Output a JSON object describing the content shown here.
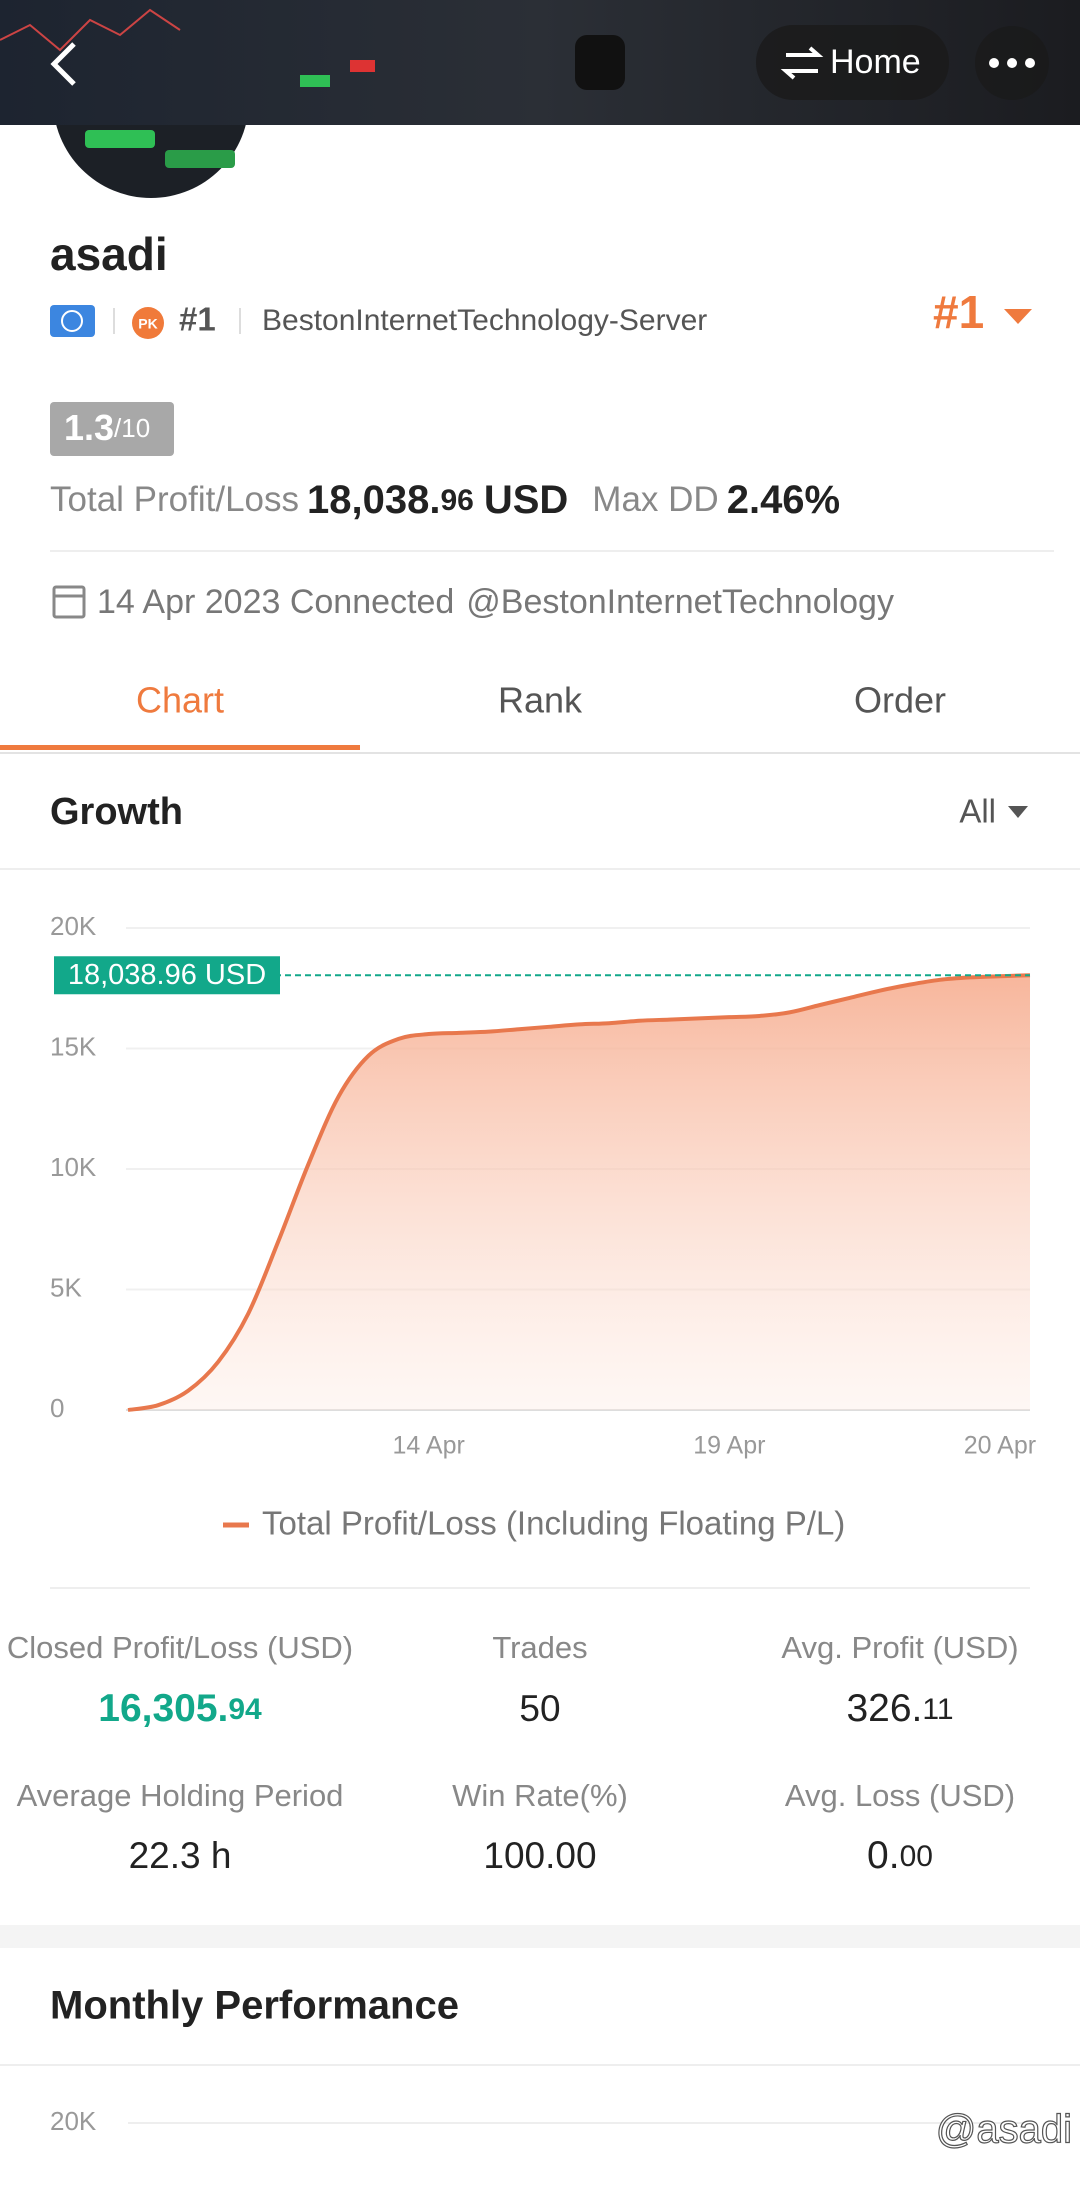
{
  "header": {
    "home_button": "Home"
  },
  "profile": {
    "name": "asadi",
    "rank_badge": "#1",
    "server": "BestonInternetTechnology-Server",
    "rank_right": "#1",
    "score": "1.3",
    "score_max": "/10",
    "total_label": "Total Profit/Loss",
    "total_integer": "18,038.",
    "total_decimal": "96",
    "total_unit": "USD",
    "maxdd_label": "Max DD",
    "maxdd_value": "2.46%",
    "connected": "14 Apr 2023 Connected",
    "connected_by": "@BestonInternetTechnology"
  },
  "tabs": [
    "Chart",
    "Rank",
    "Order"
  ],
  "growth": {
    "title": "Growth",
    "range": "All"
  },
  "chart_data": {
    "type": "area",
    "categories": [
      null,
      null,
      null,
      null,
      null,
      null,
      null,
      null,
      null,
      null,
      "14 Apr",
      null,
      null,
      null,
      null,
      null,
      null,
      null,
      null,
      null,
      "19 Apr",
      null,
      null,
      null,
      null,
      null,
      null,
      null,
      null,
      "20 Apr",
      null
    ],
    "series": [
      {
        "name": "Total Profit/Loss (Including Floating P/L)",
        "color": "#e8784d",
        "values": [
          0,
          200,
          800,
          2000,
          4000,
          7000,
          10200,
          13000,
          14700,
          15400,
          15600,
          15650,
          15700,
          15800,
          15900,
          16000,
          16050,
          16150,
          16200,
          16250,
          16300,
          16350,
          16500,
          16800,
          17100,
          17400,
          17650,
          17850,
          17950,
          18000,
          18038.96
        ]
      }
    ],
    "ylim": [
      0,
      20000
    ],
    "yticks": [
      0,
      {
        "value": 5000,
        "label": "5K"
      },
      {
        "value": 10000,
        "label": "10K"
      },
      {
        "value": 15000,
        "label": "15K"
      },
      {
        "value": 20000,
        "label": "20K"
      }
    ],
    "grid": true,
    "reference_line": {
      "value": 18038.96,
      "label": "18,038.96 USD",
      "color": "#12a88a"
    }
  },
  "stats": [
    {
      "label": "Closed Profit/Loss (USD)",
      "integer": "16,305.",
      "decimal": "94"
    },
    {
      "label": "Trades",
      "value": "50"
    },
    {
      "label": "Avg. Profit (USD)",
      "integer": "326.",
      "decimal": "11"
    },
    {
      "label": "Average Holding Period",
      "value": "22.3 h"
    },
    {
      "label": "Win Rate(%)",
      "value": "100.00"
    },
    {
      "label": "Avg. Loss (USD)",
      "integer": "0.",
      "decimal": "00"
    }
  ],
  "monthly": {
    "title": "Monthly Performance",
    "tick": "20K"
  },
  "watermark": "@asadi"
}
